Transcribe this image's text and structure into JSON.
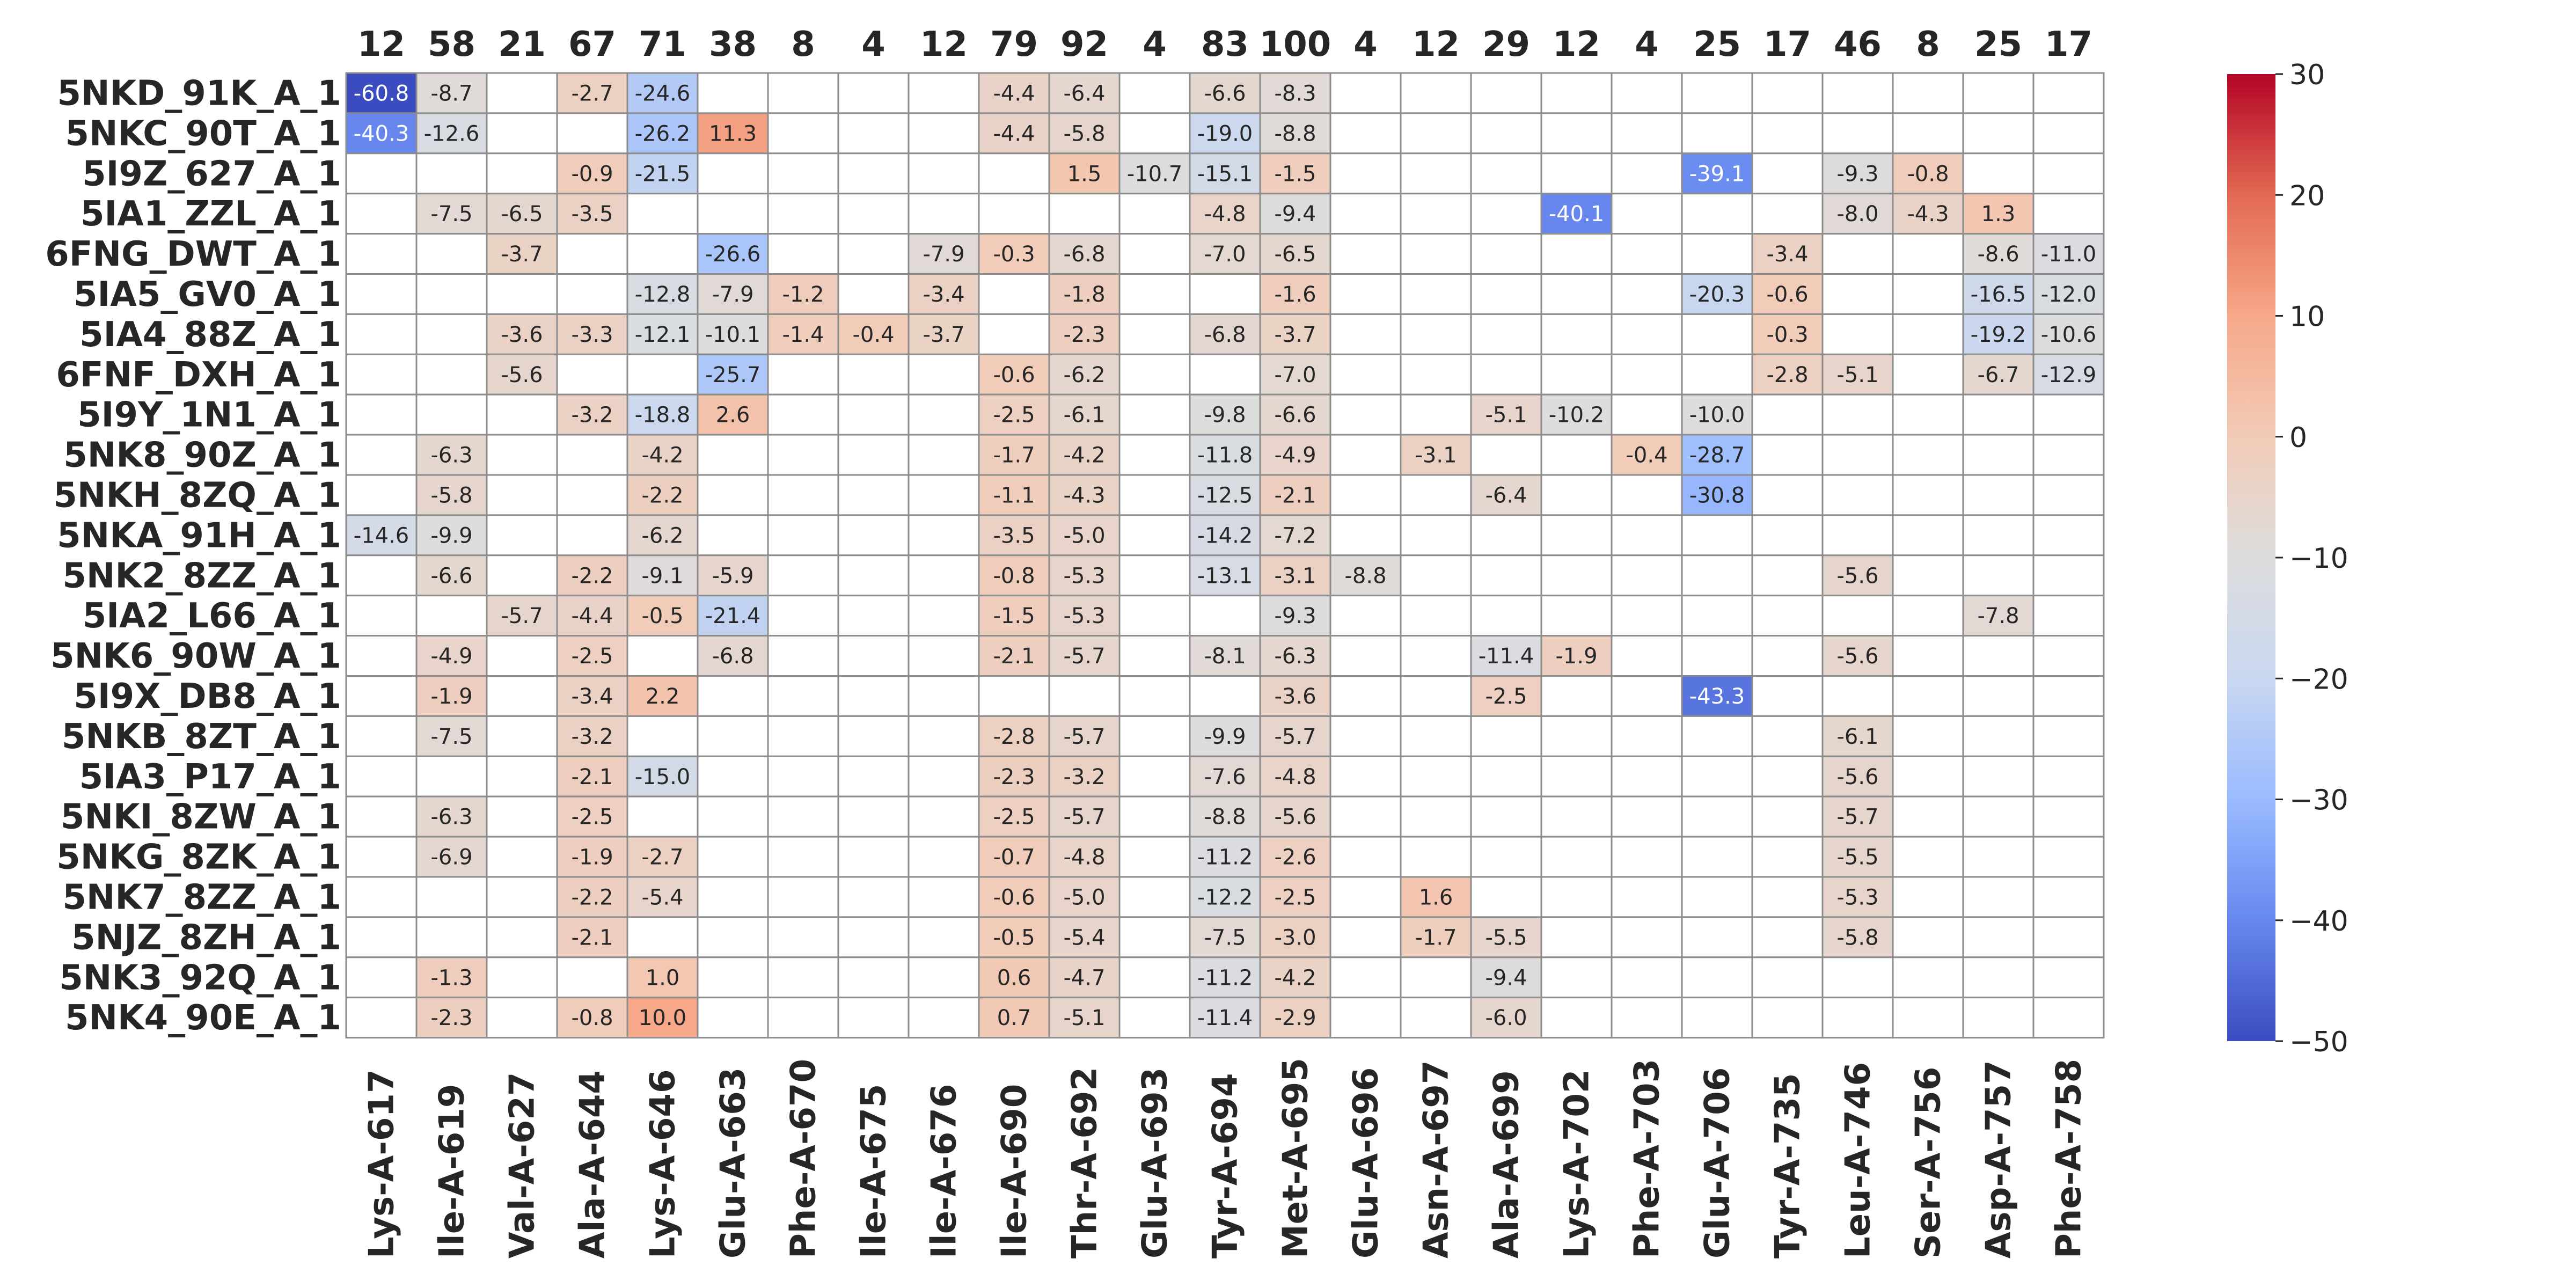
{
  "chart_data": {
    "type": "heatmap",
    "title": "",
    "xlabel": "",
    "ylabel": "",
    "columns": [
      "Lys-A-617",
      "Ile-A-619",
      "Val-A-627",
      "Ala-A-644",
      "Lys-A-646",
      "Glu-A-663",
      "Phe-A-670",
      "Ile-A-675",
      "Ile-A-676",
      "Ile-A-690",
      "Thr-A-692",
      "Glu-A-693",
      "Tyr-A-694",
      "Met-A-695",
      "Glu-A-696",
      "Asn-A-697",
      "Ala-A-699",
      "Lys-A-702",
      "Phe-A-703",
      "Glu-A-706",
      "Tyr-A-735",
      "Leu-A-746",
      "Ser-A-756",
      "Asp-A-757",
      "Phe-A-758"
    ],
    "column_counts": [
      "12",
      "58",
      "21",
      "67",
      "71",
      "38",
      "8",
      "4",
      "12",
      "79",
      "92",
      "4",
      "83",
      "100",
      "4",
      "12",
      "29",
      "12",
      "4",
      "25",
      "17",
      "46",
      "8",
      "25",
      "17"
    ],
    "rows": [
      "5NKD_91K_A_1",
      "5NKC_90T_A_1",
      "5I9Z_627_A_1",
      "5IA1_ZZL_A_1",
      "6FNG_DWT_A_1",
      "5IA5_GV0_A_1",
      "5IA4_88Z_A_1",
      "6FNF_DXH_A_1",
      "5I9Y_1N1_A_1",
      "5NK8_90Z_A_1",
      "5NKH_8ZQ_A_1",
      "5NKA_91H_A_1",
      "5NK2_8ZZ_A_1",
      "5IA2_L66_A_1",
      "5NK6_90W_A_1",
      "5I9X_DB8_A_1",
      "5NKB_8ZT_A_1",
      "5IA3_P17_A_1",
      "5NKI_8ZW_A_1",
      "5NKG_8ZK_A_1",
      "5NK7_8ZZ_A_1",
      "5NJZ_8ZH_A_1",
      "5NK3_92Q_A_1",
      "5NK4_90E_A_1"
    ],
    "values": [
      [
        -60.8,
        -8.7,
        null,
        -2.7,
        -24.6,
        null,
        null,
        null,
        null,
        -4.4,
        -6.4,
        null,
        -6.6,
        -8.3,
        null,
        null,
        null,
        null,
        null,
        null,
        null,
        null,
        null,
        null,
        null
      ],
      [
        -40.3,
        -12.6,
        null,
        null,
        -26.2,
        11.3,
        null,
        null,
        null,
        -4.4,
        -5.8,
        null,
        -19.0,
        -8.8,
        null,
        null,
        null,
        null,
        null,
        null,
        null,
        null,
        null,
        null,
        null
      ],
      [
        null,
        null,
        null,
        -0.9,
        -21.5,
        null,
        null,
        null,
        null,
        null,
        1.5,
        -10.7,
        -15.1,
        -1.5,
        null,
        null,
        null,
        null,
        null,
        -39.1,
        null,
        -9.3,
        -0.8,
        null,
        null
      ],
      [
        null,
        -7.5,
        -6.5,
        -3.5,
        null,
        null,
        null,
        null,
        null,
        null,
        null,
        null,
        -4.8,
        -9.4,
        null,
        null,
        null,
        -40.1,
        null,
        null,
        null,
        -8.0,
        -4.3,
        1.3,
        null
      ],
      [
        null,
        null,
        -3.7,
        null,
        null,
        -26.6,
        null,
        null,
        -7.9,
        -0.3,
        -6.8,
        null,
        -7.0,
        -6.5,
        null,
        null,
        null,
        null,
        null,
        null,
        -3.4,
        null,
        null,
        -8.6,
        -11.0
      ],
      [
        null,
        null,
        null,
        null,
        -12.8,
        -7.9,
        -1.2,
        null,
        -3.4,
        null,
        -1.8,
        null,
        null,
        -1.6,
        null,
        null,
        null,
        null,
        null,
        -20.3,
        -0.6,
        null,
        null,
        -16.5,
        -12.0
      ],
      [
        null,
        null,
        -3.6,
        -3.3,
        -12.1,
        -10.1,
        -1.4,
        -0.4,
        -3.7,
        null,
        -2.3,
        null,
        -6.8,
        -3.7,
        null,
        null,
        null,
        null,
        null,
        null,
        -0.3,
        null,
        null,
        -19.2,
        -10.6
      ],
      [
        null,
        null,
        -5.6,
        null,
        null,
        -25.7,
        null,
        null,
        null,
        -0.6,
        -6.2,
        null,
        null,
        -7.0,
        null,
        null,
        null,
        null,
        null,
        null,
        -2.8,
        -5.1,
        null,
        -6.7,
        -12.9
      ],
      [
        null,
        null,
        null,
        -3.2,
        -18.8,
        2.6,
        null,
        null,
        null,
        -2.5,
        -6.1,
        null,
        -9.8,
        -6.6,
        null,
        null,
        -5.1,
        -10.2,
        null,
        -10.0,
        null,
        null,
        null,
        null,
        null
      ],
      [
        null,
        -6.3,
        null,
        null,
        -4.2,
        null,
        null,
        null,
        null,
        -1.7,
        -4.2,
        null,
        -11.8,
        -4.9,
        null,
        -3.1,
        null,
        null,
        -0.4,
        -28.7,
        null,
        null,
        null,
        null,
        null
      ],
      [
        null,
        -5.8,
        null,
        null,
        -2.2,
        null,
        null,
        null,
        null,
        -1.1,
        -4.3,
        null,
        -12.5,
        -2.1,
        null,
        null,
        -6.4,
        null,
        null,
        -30.8,
        null,
        null,
        null,
        null,
        null
      ],
      [
        -14.6,
        -9.9,
        null,
        null,
        -6.2,
        null,
        null,
        null,
        null,
        -3.5,
        -5.0,
        null,
        -14.2,
        -7.2,
        null,
        null,
        null,
        null,
        null,
        null,
        null,
        null,
        null,
        null,
        null
      ],
      [
        null,
        -6.6,
        null,
        -2.2,
        -9.1,
        -5.9,
        null,
        null,
        null,
        -0.8,
        -5.3,
        null,
        -13.1,
        -3.1,
        -8.8,
        null,
        null,
        null,
        null,
        null,
        null,
        -5.6,
        null,
        null,
        null
      ],
      [
        null,
        null,
        -5.7,
        -4.4,
        -0.5,
        -21.4,
        null,
        null,
        null,
        -1.5,
        -5.3,
        null,
        null,
        -9.3,
        null,
        null,
        null,
        null,
        null,
        null,
        null,
        null,
        null,
        -7.8,
        null
      ],
      [
        null,
        -4.9,
        null,
        -2.5,
        null,
        -6.8,
        null,
        null,
        null,
        -2.1,
        -5.7,
        null,
        -8.1,
        -6.3,
        null,
        null,
        -11.4,
        -1.9,
        null,
        null,
        null,
        -5.6,
        null,
        null,
        null
      ],
      [
        null,
        -1.9,
        null,
        -3.4,
        2.2,
        null,
        null,
        null,
        null,
        null,
        null,
        null,
        null,
        -3.6,
        null,
        null,
        -2.5,
        null,
        null,
        -43.3,
        null,
        null,
        null,
        null,
        null
      ],
      [
        null,
        -7.5,
        null,
        -3.2,
        null,
        null,
        null,
        null,
        null,
        -2.8,
        -5.7,
        null,
        -9.9,
        -5.7,
        null,
        null,
        null,
        null,
        null,
        null,
        null,
        -6.1,
        null,
        null,
        null
      ],
      [
        null,
        null,
        null,
        -2.1,
        -15.0,
        null,
        null,
        null,
        null,
        -2.3,
        -3.2,
        null,
        -7.6,
        -4.8,
        null,
        null,
        null,
        null,
        null,
        null,
        null,
        -5.6,
        null,
        null,
        null
      ],
      [
        null,
        -6.3,
        null,
        -2.5,
        null,
        null,
        null,
        null,
        null,
        -2.5,
        -5.7,
        null,
        -8.8,
        -5.6,
        null,
        null,
        null,
        null,
        null,
        null,
        null,
        -5.7,
        null,
        null,
        null
      ],
      [
        null,
        -6.9,
        null,
        -1.9,
        -2.7,
        null,
        null,
        null,
        null,
        -0.7,
        -4.8,
        null,
        -11.2,
        -2.6,
        null,
        null,
        null,
        null,
        null,
        null,
        null,
        -5.5,
        null,
        null,
        null
      ],
      [
        null,
        null,
        null,
        -2.2,
        -5.4,
        null,
        null,
        null,
        null,
        -0.6,
        -5.0,
        null,
        -12.2,
        -2.5,
        null,
        1.6,
        null,
        null,
        null,
        null,
        null,
        -5.3,
        null,
        null,
        null
      ],
      [
        null,
        null,
        null,
        -2.1,
        null,
        null,
        null,
        null,
        null,
        -0.5,
        -5.4,
        null,
        -7.5,
        -3.0,
        null,
        -1.7,
        -5.5,
        null,
        null,
        null,
        null,
        -5.8,
        null,
        null,
        null
      ],
      [
        null,
        -1.3,
        null,
        null,
        1.0,
        null,
        null,
        null,
        null,
        0.6,
        -4.7,
        null,
        -11.2,
        -4.2,
        null,
        null,
        -9.4,
        null,
        null,
        null,
        null,
        null,
        null,
        null,
        null
      ],
      [
        null,
        -2.3,
        null,
        -0.8,
        10.0,
        null,
        null,
        null,
        null,
        0.7,
        -5.1,
        null,
        -11.4,
        -2.9,
        null,
        null,
        -6.0,
        null,
        null,
        null,
        null,
        null,
        null,
        null,
        null
      ]
    ],
    "value_range": [
      -50,
      30
    ],
    "colorbar_ticks": [
      "30",
      "20",
      "10",
      "0",
      "−10",
      "−20",
      "−30",
      "−40",
      "−50"
    ],
    "colormap": "coolwarm",
    "colormap_stops": [
      "#3b4cc0",
      "#6788ee",
      "#9abbff",
      "#c9d7f0",
      "#dddddd",
      "#f2cbb7",
      "#f7a889",
      "#e26952",
      "#b40426"
    ],
    "grid": true,
    "legend": "colorbar-right"
  }
}
